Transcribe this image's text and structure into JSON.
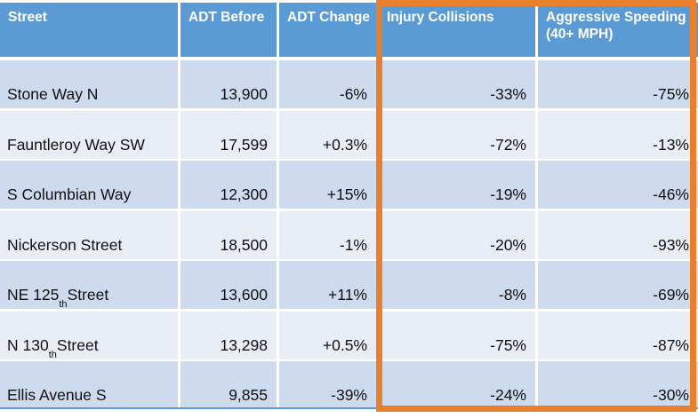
{
  "table": {
    "columns": [
      {
        "label": "Street"
      },
      {
        "label": "ADT Before"
      },
      {
        "label": "ADT Change"
      },
      {
        "label": "Injury Collisions"
      },
      {
        "label": "Aggressive Speeding (40+ MPH)"
      }
    ],
    "rows": [
      {
        "street_pre": "Stone Way N",
        "street_sup": "",
        "street_post": "",
        "adt_before": "13,900",
        "adt_change": "-6%",
        "injury_collisions": "-33%",
        "aggressive_speeding": "-75%"
      },
      {
        "street_pre": "Fauntleroy Way SW",
        "street_sup": "",
        "street_post": "",
        "adt_before": "17,599",
        "adt_change": "+0.3%",
        "injury_collisions": "-72%",
        "aggressive_speeding": "-13%"
      },
      {
        "street_pre": "S Columbian Way",
        "street_sup": "",
        "street_post": "",
        "adt_before": "12,300",
        "adt_change": "+15%",
        "injury_collisions": "-19%",
        "aggressive_speeding": "-46%"
      },
      {
        "street_pre": "Nickerson Street",
        "street_sup": "",
        "street_post": "",
        "adt_before": "18,500",
        "adt_change": "-1%",
        "injury_collisions": "-20%",
        "aggressive_speeding": "-93%"
      },
      {
        "street_pre": "NE 125",
        "street_sup": "th",
        "street_post": " Street",
        "adt_before": "13,600",
        "adt_change": "+11%",
        "injury_collisions": "-8%",
        "aggressive_speeding": "-69%"
      },
      {
        "street_pre": "N 130",
        "street_sup": "th",
        "street_post": " Street",
        "adt_before": "13,298",
        "adt_change": "+0.5%",
        "injury_collisions": "-75%",
        "aggressive_speeding": "-87%"
      },
      {
        "street_pre": "Ellis Avenue S",
        "street_sup": "",
        "street_post": "",
        "adt_before": "9,855",
        "adt_change": "-39%",
        "injury_collisions": "-24%",
        "aggressive_speeding": "-30%"
      }
    ]
  },
  "highlight": {
    "highlighted_columns": [
      "Injury Collisions",
      "Aggressive Speeding (40+ MPH)"
    ],
    "color": "#E87F2D"
  },
  "colors": {
    "header_bg": "#5B9BD5",
    "band_dark": "#CEDAED",
    "band_light": "#E9EDF6",
    "header_text": "#FFFFFF",
    "body_text": "#111111",
    "bottom_rule": "#5B9BD5"
  },
  "chart_data": {
    "type": "table",
    "title": "",
    "columns": [
      "Street",
      "ADT Before",
      "ADT Change",
      "Injury Collisions",
      "Aggressive Speeding (40+ MPH)"
    ],
    "rows": [
      [
        "Stone Way N",
        "13,900",
        "-6%",
        "-33%",
        "-75%"
      ],
      [
        "Fauntleroy Way SW",
        "17,599",
        "+0.3%",
        "-72%",
        "-13%"
      ],
      [
        "S Columbian Way",
        "12,300",
        "+15%",
        "-19%",
        "-46%"
      ],
      [
        "Nickerson Street",
        "18,500",
        "-1%",
        "-20%",
        "-93%"
      ],
      [
        "NE 125th Street",
        "13,600",
        "+11%",
        "-8%",
        "-69%"
      ],
      [
        "N 130th Street",
        "13,298",
        "+0.5%",
        "-75%",
        "-87%"
      ],
      [
        "Ellis Avenue S",
        "9,855",
        "-39%",
        "-24%",
        "-30%"
      ]
    ],
    "annotations": [
      "Orange rectangle highlights the Injury Collisions and Aggressive Speeding (40+ MPH) columns"
    ]
  }
}
